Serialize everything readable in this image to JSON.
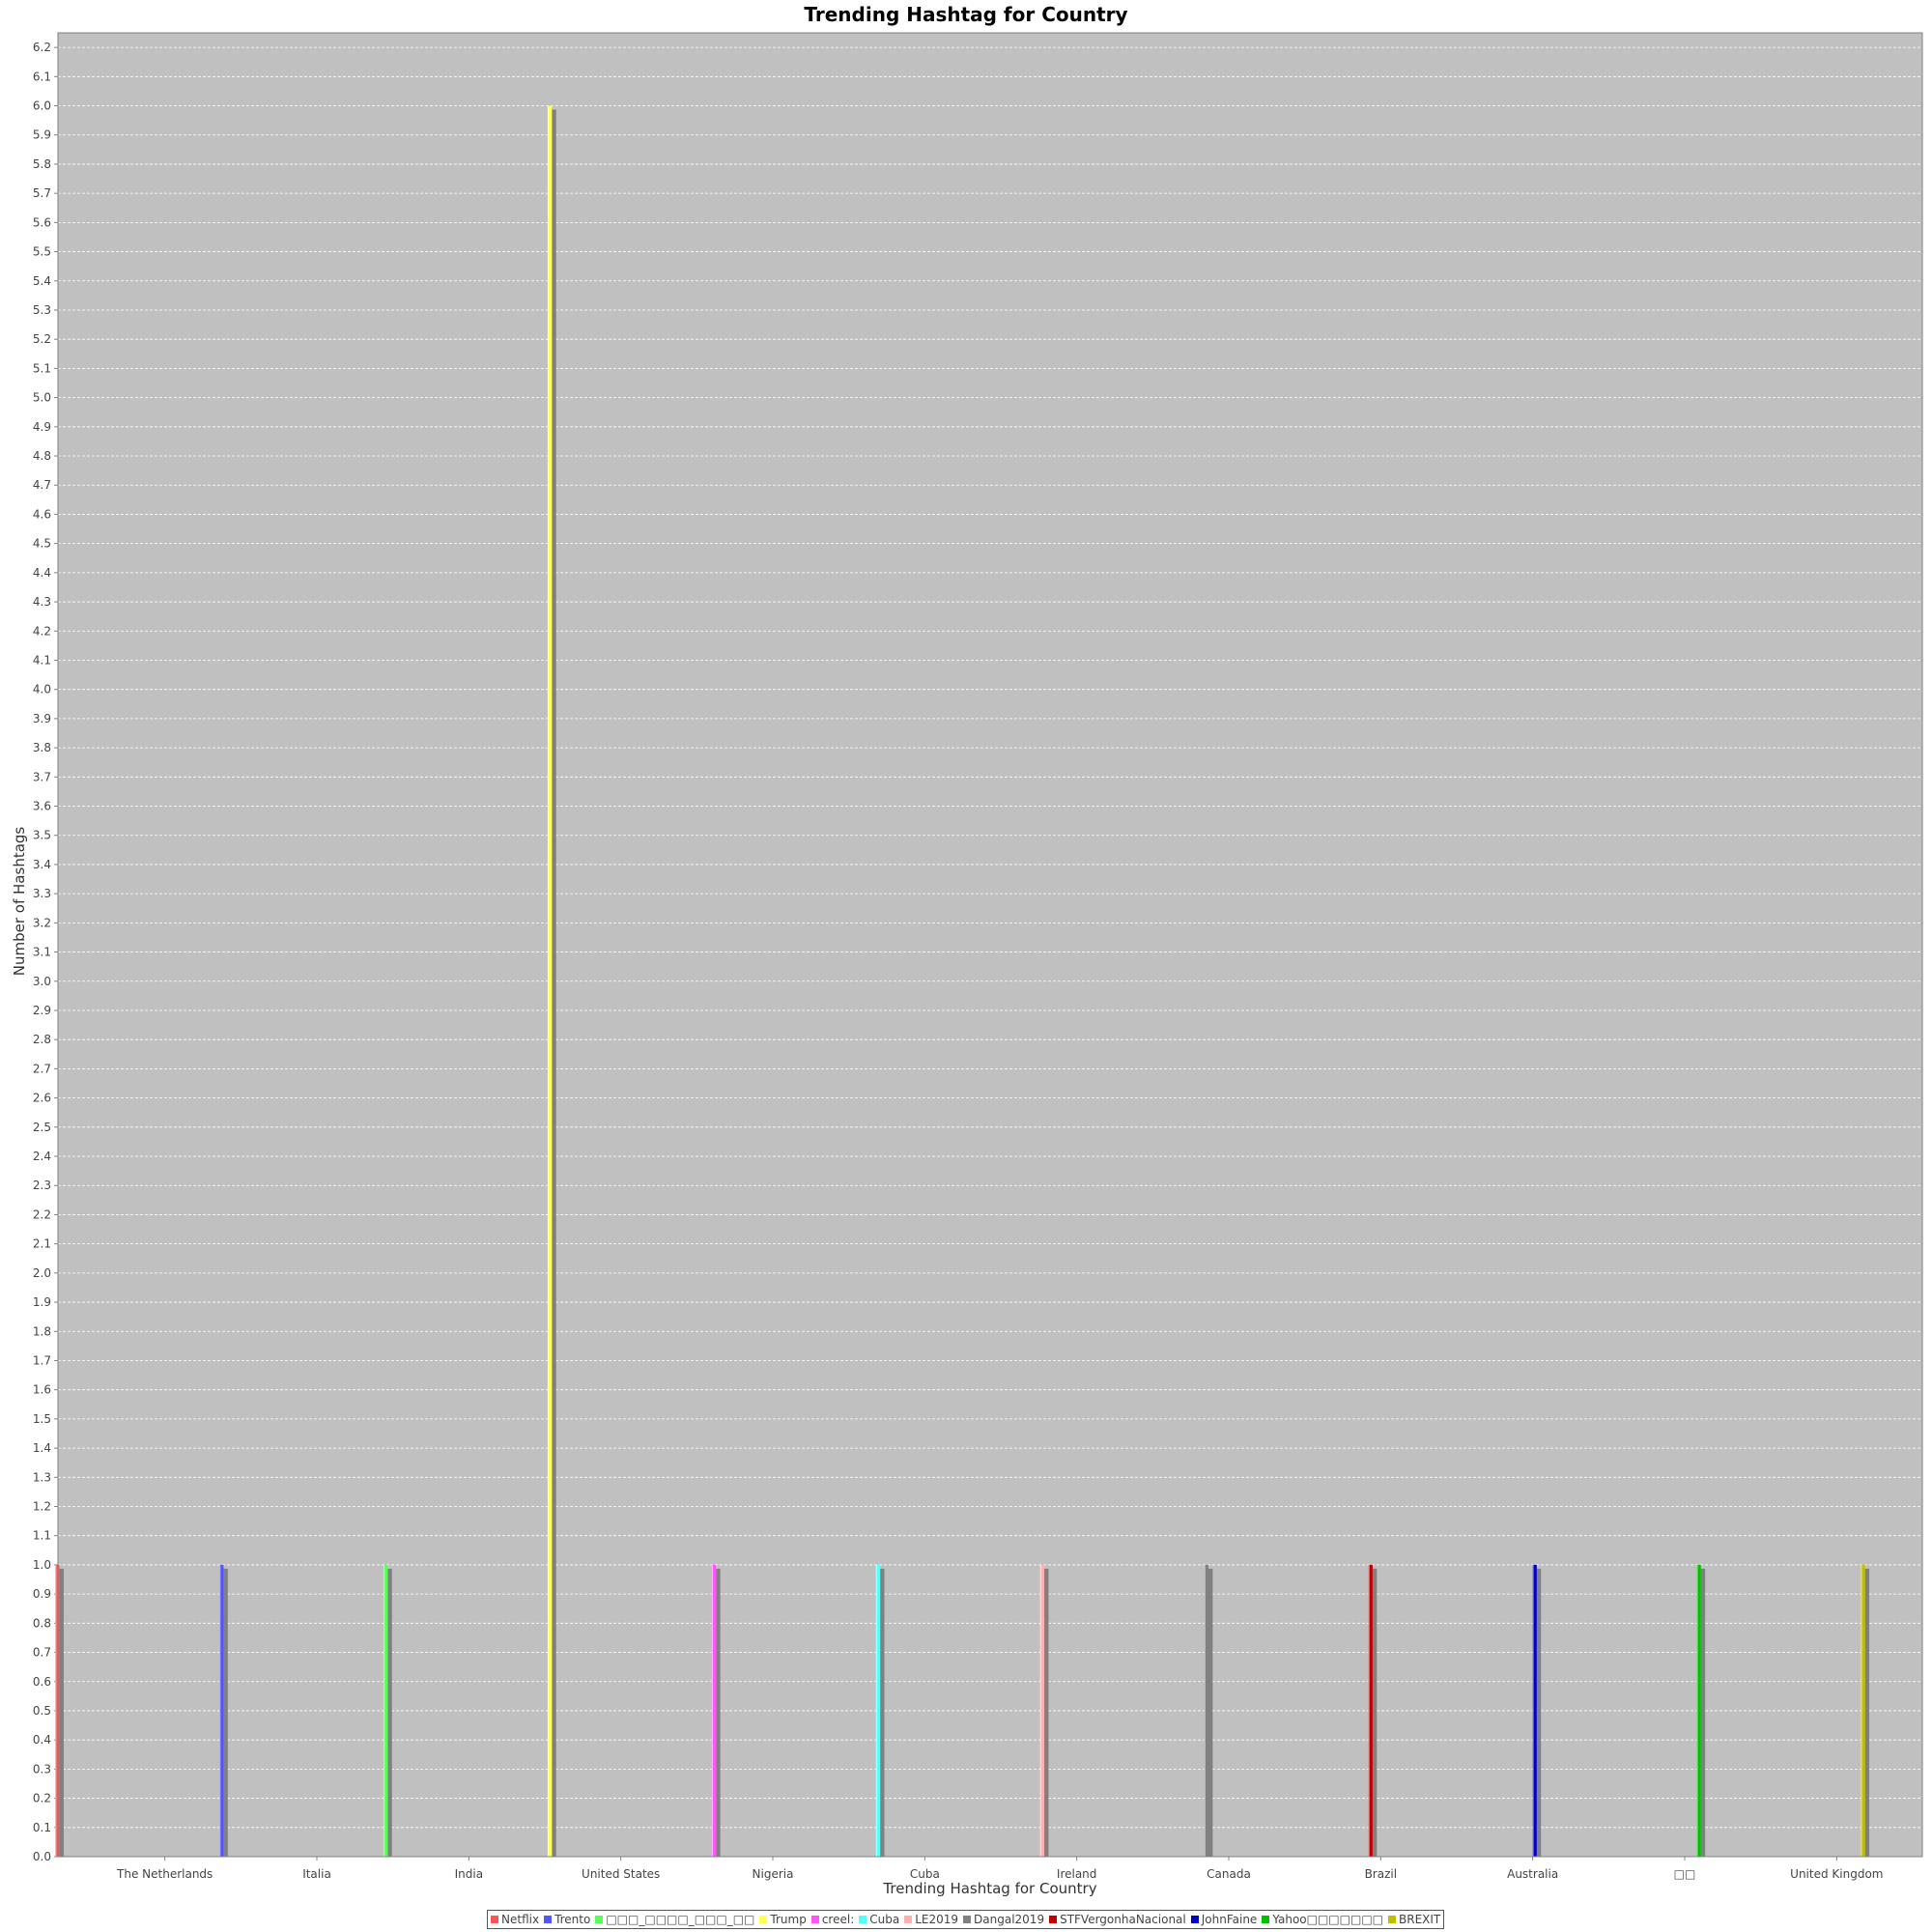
{
  "chart_data": {
    "type": "bar",
    "title": "Trending Hashtag for Country",
    "xlabel": "Trending Hashtag for Country",
    "ylabel": "Number of Hashtags",
    "ylim": [
      0,
      6.25
    ],
    "ytick_step": 0.1,
    "grid": true,
    "legend_position": "bottom",
    "categories": [
      "The Netherlands",
      "Italia",
      "India",
      "United States",
      "Nigeria",
      "Cuba",
      "Ireland",
      "Canada",
      "Brazil",
      "Australia",
      "□□",
      "United Kingdom"
    ],
    "series": [
      {
        "name": "Netflix",
        "color": "#ff5555",
        "category": "The Netherlands",
        "value": 1
      },
      {
        "name": "Trento",
        "color": "#5555ff",
        "category": "Italia",
        "value": 1
      },
      {
        "name": "□□□_□□□□_□□□_□□",
        "color": "#55ff55",
        "category": "India",
        "value": 1
      },
      {
        "name": "Trump",
        "color": "#ffff55",
        "category": "United States",
        "value": 6
      },
      {
        "name": "creel:",
        "color": "#ff55ff",
        "category": "Nigeria",
        "value": 1
      },
      {
        "name": "Cuba",
        "color": "#55ffff",
        "category": "Cuba",
        "value": 1
      },
      {
        "name": "LE2019",
        "color": "#ffafaf",
        "category": "Ireland",
        "value": 1
      },
      {
        "name": "Dangal2019",
        "color": "#808080",
        "category": "Canada",
        "value": 1
      },
      {
        "name": "STFVergonhaNacional",
        "color": "#c00000",
        "category": "Brazil",
        "value": 1
      },
      {
        "name": "JohnFaine",
        "color": "#0000c0",
        "category": "Australia",
        "value": 1
      },
      {
        "name": "Yahoo□□□□□□□",
        "color": "#00c000",
        "category": "□□",
        "value": 1
      },
      {
        "name": "BREXIT",
        "color": "#c0c000",
        "category": "United Kingdom",
        "value": 1
      }
    ],
    "colors": {
      "plot_background": "#c0c0c0",
      "gridline": "#ffffff",
      "bar_shadow": "#808080",
      "axis": "#808080",
      "tick_label": "#444444"
    }
  }
}
